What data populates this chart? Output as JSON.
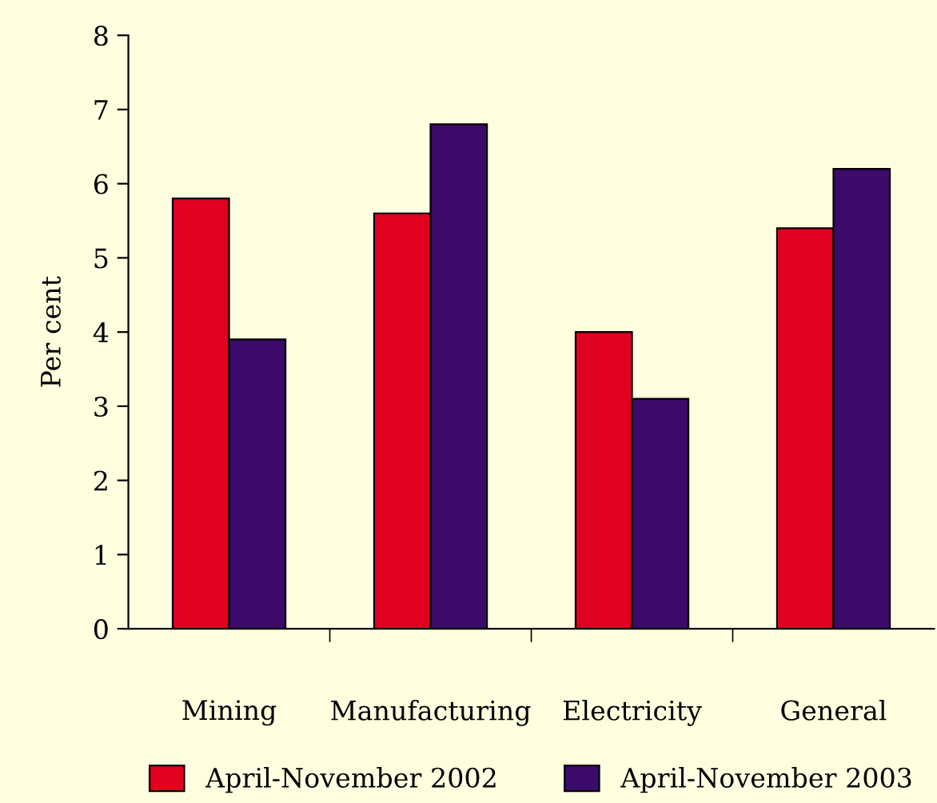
{
  "chart_data": {
    "type": "bar",
    "ylabel": "Per cent",
    "categories": [
      "Mining",
      "Manufacturing",
      "Electricity",
      "General"
    ],
    "series": [
      {
        "name": "April-November 2002",
        "color": "#e0001f",
        "values": [
          5.8,
          5.6,
          4.0,
          5.4
        ]
      },
      {
        "name": "April-November 2003",
        "color": "#3c0a6b",
        "values": [
          3.9,
          6.8,
          3.1,
          6.2
        ]
      }
    ],
    "ylim": [
      0,
      8
    ],
    "yticks": [
      0,
      1,
      2,
      3,
      4,
      5,
      6,
      7,
      8
    ],
    "grid": false,
    "legend": "bottom"
  }
}
